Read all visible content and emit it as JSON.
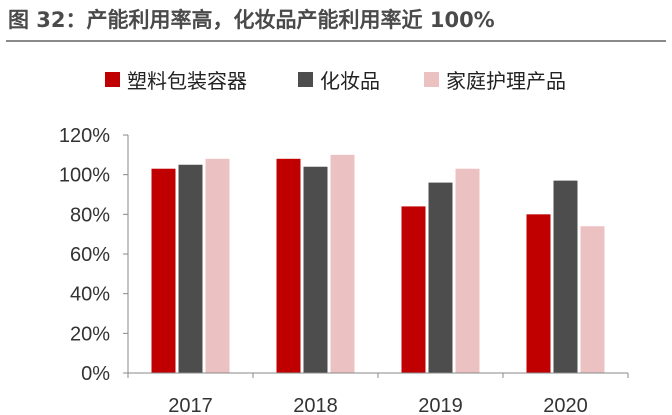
{
  "title": "图 32：产能利用率高，化妆品产能利用率近 100%",
  "colors": {
    "plastic": "#c00000",
    "cosmetics": "#4d4d4d",
    "household": "#ecc1c1",
    "axis": "#888888",
    "title_rule": "#8a8a8a"
  },
  "chart_data": {
    "type": "bar",
    "categories": [
      "2017",
      "2018",
      "2019",
      "2020"
    ],
    "series": [
      {
        "name": "塑料包装容器",
        "values": [
          103,
          108,
          84,
          80
        ]
      },
      {
        "name": "化妆品",
        "values": [
          105,
          104,
          96,
          97
        ]
      },
      {
        "name": "家庭护理产品",
        "values": [
          108,
          110,
          103,
          74
        ]
      }
    ],
    "yticks": [
      "0%",
      "20%",
      "40%",
      "60%",
      "80%",
      "100%",
      "120%"
    ],
    "ylim": [
      0,
      120
    ],
    "ylabel": "",
    "xlabel": "",
    "legend_position": "top",
    "grid": false
  }
}
